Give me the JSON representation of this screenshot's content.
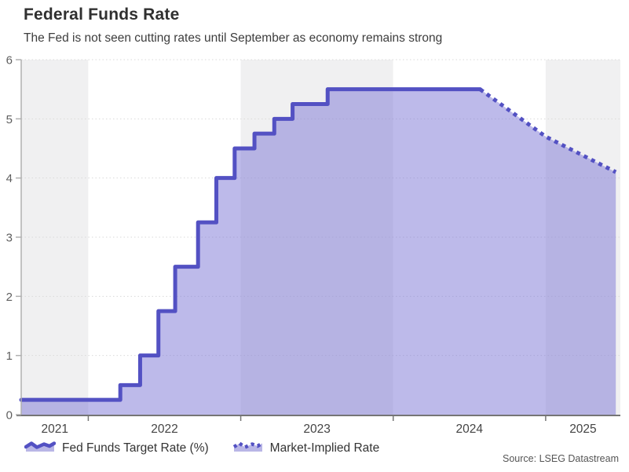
{
  "header": {
    "title": "Federal Funds Rate",
    "subtitle": "The Fed is not seen cutting rates until September as economy remains strong"
  },
  "legend": {
    "items": [
      {
        "label": "Fed Funds Target Rate (%)",
        "style": "solid-area"
      },
      {
        "label": "Market-Implied Rate",
        "style": "dashed"
      }
    ]
  },
  "source_note": "Source: LSEG Datastream",
  "colors": {
    "accent_line": "#5351c3",
    "area_fill": "rgba(123,117,214,0.5)",
    "band_shade": "#f0f0f1",
    "band_light": "#ffffff",
    "gridline": "#d9d9d9",
    "x_axis": "#757575",
    "y_axis": "#b0b0b0",
    "tick_label": "#5f5f5f",
    "year_label": "#444444"
  },
  "chart_data": {
    "type": "area",
    "subtype": "step-area-with-dashed-forecast",
    "title": "Federal Funds Rate",
    "xlabel": "",
    "ylabel": "",
    "x_range": [
      2021.56,
      2025.49
    ],
    "ylim": [
      0,
      6
    ],
    "y_ticks": [
      0,
      1,
      2,
      3,
      4,
      5,
      6
    ],
    "x_tick_years": [
      2022,
      2023,
      2024,
      2025
    ],
    "year_band_labels": [
      "2021",
      "2022",
      "2023",
      "2024",
      "2025"
    ],
    "grid": "dotted-horizontal",
    "legend_position": "bottom-left",
    "series": [
      {
        "name": "Fed Funds Target Rate (%)",
        "style": "step-solid",
        "points": [
          [
            2021.56,
            0.25
          ],
          [
            2022.21,
            0.5
          ],
          [
            2022.34,
            1.0
          ],
          [
            2022.46,
            1.75
          ],
          [
            2022.57,
            2.5
          ],
          [
            2022.72,
            3.25
          ],
          [
            2022.84,
            4.0
          ],
          [
            2022.96,
            4.5
          ],
          [
            2023.09,
            4.75
          ],
          [
            2023.22,
            5.0
          ],
          [
            2023.34,
            5.25
          ],
          [
            2023.57,
            5.5
          ],
          [
            2024.57,
            5.5
          ]
        ]
      },
      {
        "name": "Market-Implied Rate",
        "style": "dashed",
        "points": [
          [
            2024.57,
            5.5
          ],
          [
            2025.0,
            4.7
          ],
          [
            2025.46,
            4.1
          ]
        ]
      }
    ]
  }
}
